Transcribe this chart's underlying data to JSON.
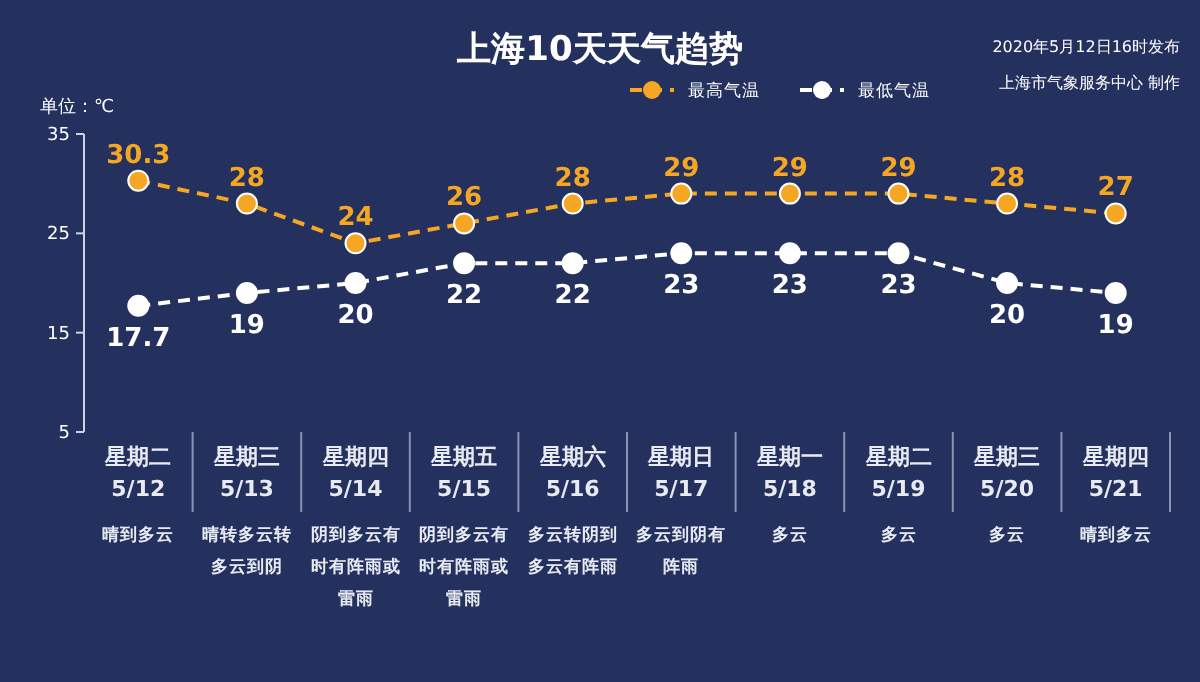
{
  "chart_data": {
    "type": "line",
    "title": "上海10天天气趋势",
    "ylabel": "单位：℃",
    "categories": [
      "星期二 5/12",
      "星期三 5/13",
      "星期四 5/14",
      "星期五 5/15",
      "星期六 5/16",
      "星期日 5/17",
      "星期一 5/18",
      "星期二 5/19",
      "星期三 5/20",
      "星期四 5/21"
    ],
    "series": [
      {
        "name": "最高气温",
        "color": "#f5a623",
        "values": [
          30.3,
          28,
          24,
          26,
          28,
          29,
          29,
          29,
          28,
          27
        ]
      },
      {
        "name": "最低气温",
        "color": "#ffffff",
        "values": [
          17.7,
          19,
          20,
          22,
          22,
          23,
          23,
          23,
          20,
          19
        ]
      }
    ],
    "ylim": [
      5,
      35
    ],
    "yticks": [
      5,
      15,
      25,
      35
    ],
    "grid": false,
    "legend": "top right",
    "marker": "circle",
    "line_style": "dashed",
    "data_labels": true,
    "annotations": [
      "2020年5月12日16时发布",
      "上海市气象服务中心 制作",
      "晴到多云",
      "晴转多云转多云到阴",
      "阴到多云有时有阵雨或雷雨",
      "阴到多云有时有阵雨或雷雨",
      "多云转阴到多云有阵雨",
      "多云到阴有阵雨",
      "多云",
      "多云",
      "多云",
      "晴到多云"
    ]
  }
}
